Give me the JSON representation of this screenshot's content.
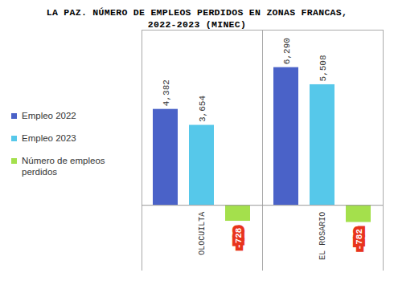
{
  "chart_data": {
    "type": "bar",
    "title": "LA PAZ. NÚMERO DE EMPLEOS PERDIDOS EN ZONAS FRANCAS, 2022-2023 (MINEC)",
    "categories": [
      "OLOCUILTA",
      "EL ROSARIO"
    ],
    "series": [
      {
        "name": "Empleo 2022",
        "color": "#4a62c8",
        "values": [
          4382,
          6290
        ],
        "value_labels": [
          "4,382",
          "6,290"
        ]
      },
      {
        "name": "Empleo 2023",
        "color": "#56c8ea",
        "values": [
          3654,
          5508
        ],
        "value_labels": [
          "3,654",
          "5,508"
        ]
      },
      {
        "name": "Número de empleos perdidos",
        "color": "#a4e04c",
        "values": [
          -728,
          -782
        ]
      }
    ],
    "ylim": [
      -3000,
      8000
    ],
    "yticks": [],
    "data_labels": true,
    "tick_labels": "x",
    "legend": "left",
    "grid": false
  }
}
